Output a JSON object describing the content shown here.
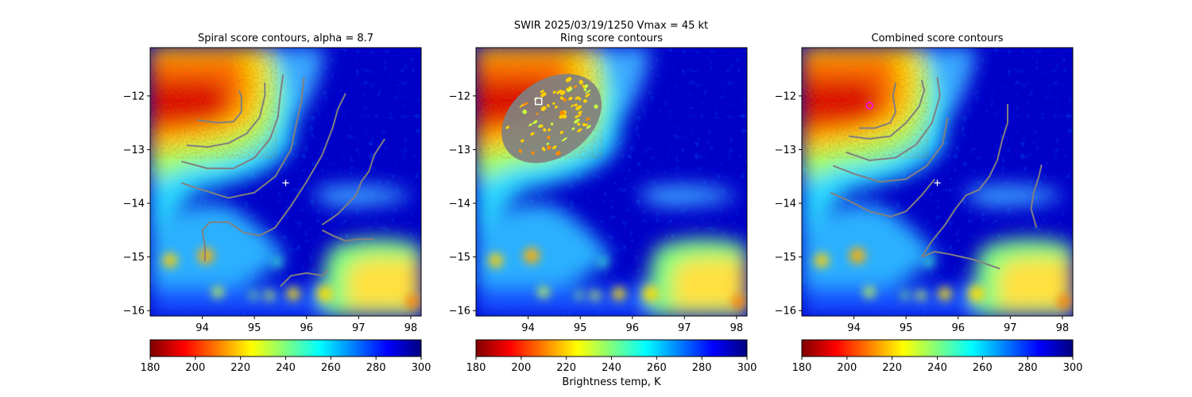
{
  "figure": {
    "suptitle": "SWIR  2025/03/19/1250    Vmax = 45 kt",
    "colorbar_label": "Brightness temp, K"
  },
  "colormap": {
    "name": "jet",
    "stops": [
      "#7f0000",
      "#ff0000",
      "#ff7f00",
      "#ffff00",
      "#7fff7f",
      "#00ffff",
      "#007fff",
      "#0000ff",
      "#00007f"
    ],
    "range": [
      180,
      300
    ],
    "ticks": [
      "180",
      "200",
      "220",
      "240",
      "260",
      "280",
      "300"
    ]
  },
  "contour_color": "#808080",
  "chart_data": [
    {
      "type": "heatmap",
      "title": "Spiral score contours, alpha =  8.7",
      "xlabel": "",
      "ylabel": "",
      "xlim": [
        93.0,
        98.2
      ],
      "ylim": [
        -16.1,
        -11.1
      ],
      "xticks": [
        "94",
        "95",
        "96",
        "97",
        "98"
      ],
      "yticks": [
        "−12",
        "−13",
        "−14",
        "−15",
        "−16"
      ],
      "marker": {
        "type": "plus",
        "lon": 95.6,
        "lat": -13.62,
        "color": "#ffffff"
      },
      "contours": [
        [
          [
            93.9,
            -12.45
          ],
          [
            94.3,
            -12.5
          ],
          [
            94.6,
            -12.48
          ],
          [
            94.75,
            -12.3
          ],
          [
            94.75,
            -12.0
          ],
          [
            94.7,
            -11.9
          ]
        ],
        [
          [
            93.7,
            -12.92
          ],
          [
            94.1,
            -12.95
          ],
          [
            94.5,
            -12.88
          ],
          [
            94.85,
            -12.7
          ],
          [
            95.1,
            -12.4
          ],
          [
            95.2,
            -12.0
          ],
          [
            95.2,
            -11.75
          ]
        ],
        [
          [
            93.6,
            -13.22
          ],
          [
            94.1,
            -13.35
          ],
          [
            94.6,
            -13.35
          ],
          [
            95.0,
            -13.15
          ],
          [
            95.3,
            -12.8
          ],
          [
            95.45,
            -12.4
          ],
          [
            95.5,
            -11.95
          ],
          [
            95.55,
            -11.6
          ]
        ],
        [
          [
            93.6,
            -13.62
          ],
          [
            94.0,
            -13.75
          ],
          [
            94.5,
            -13.9
          ],
          [
            95.0,
            -13.8
          ],
          [
            95.4,
            -13.5
          ],
          [
            95.7,
            -13.0
          ],
          [
            95.8,
            -12.55
          ],
          [
            95.9,
            -12.1
          ],
          [
            95.95,
            -11.65
          ]
        ],
        [
          [
            94.05,
            -15.08
          ],
          [
            94.05,
            -14.8
          ],
          [
            94.0,
            -14.5
          ],
          [
            94.15,
            -14.35
          ],
          [
            94.5,
            -14.35
          ],
          [
            94.8,
            -14.55
          ],
          [
            95.1,
            -14.6
          ],
          [
            95.4,
            -14.45
          ],
          [
            95.7,
            -14.05
          ],
          [
            96.0,
            -13.6
          ],
          [
            96.3,
            -13.1
          ],
          [
            96.5,
            -12.6
          ],
          [
            96.6,
            -12.25
          ],
          [
            96.75,
            -11.95
          ]
        ],
        [
          [
            96.3,
            -14.4
          ],
          [
            96.6,
            -14.2
          ],
          [
            96.8,
            -14.0
          ],
          [
            96.95,
            -13.85
          ],
          [
            97.05,
            -13.6
          ],
          [
            97.2,
            -13.4
          ],
          [
            97.3,
            -13.1
          ],
          [
            97.5,
            -12.8
          ]
        ],
        [
          [
            96.3,
            -14.5
          ],
          [
            96.5,
            -14.6
          ],
          [
            96.75,
            -14.7
          ],
          [
            97.0,
            -14.67
          ],
          [
            97.3,
            -14.67
          ]
        ],
        [
          [
            95.5,
            -15.55
          ],
          [
            95.7,
            -15.35
          ],
          [
            96.0,
            -15.3
          ],
          [
            96.2,
            -15.33
          ],
          [
            96.3,
            -15.35
          ],
          [
            96.4,
            -15.25
          ]
        ]
      ]
    },
    {
      "type": "heatmap",
      "title": "Ring score contours",
      "xlabel": "",
      "ylabel": "",
      "xlim": [
        93.0,
        98.2
      ],
      "ylim": [
        -16.1,
        -11.1
      ],
      "xticks": [
        "94",
        "95",
        "96",
        "97",
        "98"
      ],
      "yticks": [
        "−12",
        "−13",
        "−14",
        "−15",
        "−16"
      ],
      "marker": {
        "type": "square",
        "lon": 94.2,
        "lat": -12.1,
        "color": "#ffffff"
      },
      "ring_region": {
        "lon": 94.45,
        "lat": -12.42,
        "rx": 1.05,
        "ry": 0.72,
        "rotate_deg": -35
      }
    },
    {
      "type": "heatmap",
      "title": "Combined score contours",
      "xlabel": "",
      "ylabel": "",
      "xlim": [
        93.0,
        98.2
      ],
      "ylim": [
        -16.1,
        -11.1
      ],
      "xticks": [
        "94",
        "95",
        "96",
        "97",
        "98"
      ],
      "yticks": [
        "−12",
        "−13",
        "−14",
        "−15",
        "−16"
      ],
      "marker": {
        "type": "plus",
        "lon": 95.6,
        "lat": -13.62,
        "color": "#ffffff"
      },
      "center_marker": {
        "type": "circle",
        "lon": 94.3,
        "lat": -12.18,
        "color": "#ff00ff"
      },
      "contours": [
        [
          [
            94.1,
            -12.6
          ],
          [
            94.4,
            -12.6
          ],
          [
            94.7,
            -12.5
          ],
          [
            94.8,
            -12.3
          ],
          [
            94.75,
            -12.0
          ],
          [
            94.8,
            -11.75
          ]
        ],
        [
          [
            93.9,
            -12.75
          ],
          [
            94.3,
            -12.8
          ],
          [
            94.7,
            -12.75
          ],
          [
            95.0,
            -12.5
          ],
          [
            95.25,
            -12.2
          ],
          [
            95.35,
            -11.9
          ],
          [
            95.3,
            -11.7
          ]
        ],
        [
          [
            93.85,
            -13.05
          ],
          [
            94.3,
            -13.2
          ],
          [
            94.8,
            -13.15
          ],
          [
            95.2,
            -12.9
          ],
          [
            95.5,
            -12.5
          ],
          [
            95.65,
            -12.0
          ],
          [
            95.6,
            -11.65
          ]
        ],
        [
          [
            93.6,
            -13.3
          ],
          [
            94.0,
            -13.45
          ],
          [
            94.5,
            -13.6
          ],
          [
            95.0,
            -13.55
          ],
          [
            95.4,
            -13.3
          ],
          [
            95.7,
            -12.9
          ],
          [
            95.8,
            -12.4
          ]
        ],
        [
          [
            93.55,
            -13.8
          ],
          [
            93.9,
            -13.95
          ],
          [
            94.3,
            -14.15
          ],
          [
            94.7,
            -14.25
          ],
          [
            95.0,
            -14.15
          ],
          [
            95.3,
            -13.85
          ],
          [
            95.55,
            -13.55
          ]
        ],
        [
          [
            95.3,
            -15.0
          ],
          [
            95.5,
            -14.7
          ],
          [
            95.75,
            -14.4
          ],
          [
            95.95,
            -14.1
          ],
          [
            96.15,
            -13.85
          ],
          [
            96.4,
            -13.75
          ],
          [
            96.6,
            -13.5
          ],
          [
            96.75,
            -13.2
          ],
          [
            96.85,
            -12.8
          ],
          [
            96.95,
            -12.5
          ],
          [
            96.95,
            -12.15
          ]
        ],
        [
          [
            95.3,
            -15.0
          ],
          [
            95.55,
            -14.9
          ],
          [
            95.85,
            -14.95
          ],
          [
            96.3,
            -15.05
          ],
          [
            96.6,
            -15.15
          ],
          [
            96.8,
            -15.22
          ]
        ],
        [
          [
            97.5,
            -14.45
          ],
          [
            97.4,
            -14.1
          ],
          [
            97.45,
            -13.8
          ],
          [
            97.55,
            -13.5
          ],
          [
            97.6,
            -13.28
          ]
        ]
      ]
    }
  ]
}
